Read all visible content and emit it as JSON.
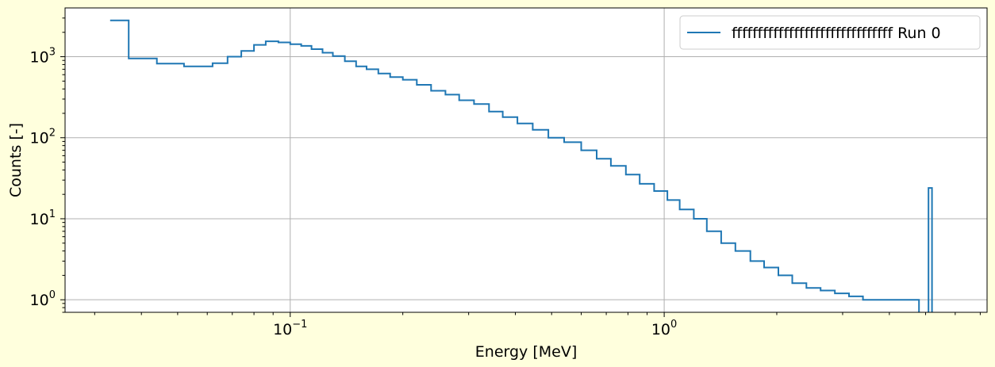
{
  "chart_data": {
    "type": "line",
    "drawstyle": "steps",
    "xlabel": "Energy [MeV]",
    "ylabel": "Counts [-]",
    "xscale": "log",
    "yscale": "log",
    "xlim": [
      0.025,
      7.3
    ],
    "ylim": [
      0.7,
      4000
    ],
    "grid": true,
    "legend": "top-right",
    "x_ticks": [
      {
        "value": 0.1,
        "base": "10",
        "exp": "−1"
      },
      {
        "value": 1,
        "base": "10",
        "exp": "0"
      }
    ],
    "y_ticks": [
      {
        "value": 1,
        "base": "10",
        "exp": "0"
      },
      {
        "value": 10,
        "base": "10",
        "exp": "1"
      },
      {
        "value": 100,
        "base": "10",
        "exp": "2"
      },
      {
        "value": 1000,
        "base": "10",
        "exp": "3"
      }
    ],
    "series": [
      {
        "name": "fffffffffffffffffffffffffffffff Run 0",
        "color": "#1f77b4",
        "x": [
          0.033,
          0.037,
          0.044,
          0.052,
          0.062,
          0.068,
          0.074,
          0.08,
          0.086,
          0.093,
          0.1,
          0.107,
          0.114,
          0.122,
          0.13,
          0.14,
          0.15,
          0.16,
          0.172,
          0.185,
          0.2,
          0.218,
          0.238,
          0.26,
          0.283,
          0.31,
          0.34,
          0.37,
          0.405,
          0.445,
          0.49,
          0.54,
          0.6,
          0.66,
          0.72,
          0.79,
          0.86,
          0.94,
          1.02,
          1.1,
          1.2,
          1.3,
          1.42,
          1.55,
          1.7,
          1.85,
          2.02,
          2.2,
          2.4,
          2.62,
          2.86,
          3.12,
          3.4,
          3.7,
          4.05,
          4.4,
          4.8,
          5.09,
          5.2,
          5.4
        ],
        "values": [
          2800,
          950,
          820,
          760,
          830,
          1000,
          1180,
          1400,
          1550,
          1500,
          1430,
          1360,
          1240,
          1120,
          1020,
          880,
          760,
          700,
          620,
          560,
          520,
          450,
          380,
          340,
          290,
          260,
          210,
          180,
          150,
          125,
          100,
          88,
          70,
          55,
          45,
          35,
          27,
          22,
          17,
          13,
          10,
          7,
          5,
          4,
          3,
          2.5,
          2,
          1.6,
          1.4,
          1.3,
          1.2,
          1.1,
          1,
          1,
          1,
          1,
          0,
          24,
          0,
          0
        ]
      }
    ]
  }
}
